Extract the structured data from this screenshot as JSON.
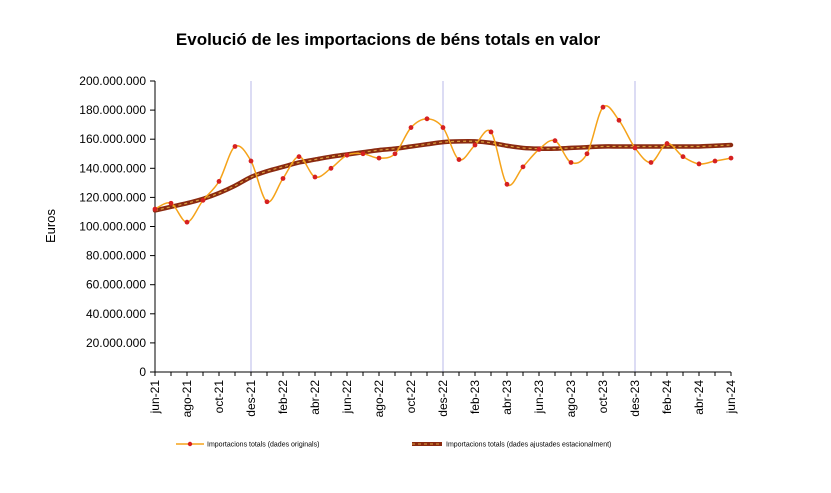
{
  "chart_data": {
    "type": "line",
    "title": "Evolució de les importacions de béns totals en valor",
    "ylabel": "Euros",
    "xlabel": "",
    "ylim": [
      0,
      200000000
    ],
    "y_ticks": [
      "0",
      "20.000.000",
      "40.000.000",
      "60.000.000",
      "80.000.000",
      "100.000.000",
      "120.000.000",
      "140.000.000",
      "160.000.000",
      "180.000.000",
      "200.000.000"
    ],
    "x_tick_labels": [
      "jun-21",
      "ago-21",
      "oct-21",
      "des-21",
      "feb-22",
      "abr-22",
      "jun-22",
      "ago-22",
      "oct-22",
      "des-22",
      "feb-23",
      "abr-23",
      "jun-23",
      "ago-23",
      "oct-23",
      "des-23",
      "feb-24",
      "abr-24",
      "jun-24"
    ],
    "months": [
      "jun-21",
      "jul-21",
      "ago-21",
      "set-21",
      "oct-21",
      "nov-21",
      "des-21",
      "gen-22",
      "feb-22",
      "mar-22",
      "abr-22",
      "mai-22",
      "jun-22",
      "jul-22",
      "ago-22",
      "set-22",
      "oct-22",
      "nov-22",
      "des-22",
      "gen-23",
      "feb-23",
      "mar-23",
      "abr-23",
      "mai-23",
      "jun-23",
      "jul-23",
      "ago-23",
      "set-23",
      "oct-23",
      "nov-23",
      "des-23",
      "gen-24",
      "feb-24",
      "mar-24",
      "abr-24",
      "mai-24",
      "jun-24"
    ],
    "year_separators": [
      "des-21",
      "des-22",
      "des-23"
    ],
    "grid": false,
    "legend_position": "bottom",
    "series": [
      {
        "name": "Importacions totals (dades originals)",
        "color": "#f5a31a",
        "marker_color": "#d62020",
        "values": [
          112000000,
          116000000,
          103000000,
          118000000,
          131000000,
          155000000,
          145000000,
          117000000,
          133000000,
          148000000,
          134000000,
          140000000,
          149000000,
          150000000,
          147000000,
          150000000,
          168000000,
          174000000,
          168000000,
          146000000,
          156000000,
          165000000,
          129000000,
          141000000,
          153000000,
          159000000,
          144000000,
          150000000,
          182000000,
          173000000,
          154000000,
          144000000,
          157000000,
          148000000,
          143000000,
          145000000,
          147000000
        ]
      },
      {
        "name": "Importacions totals (dades ajustades estacionalment)",
        "color": "#8b2a10",
        "dash_color": "#d9a040",
        "values": [
          111000000,
          113500000,
          116000000,
          119000000,
          123000000,
          128000000,
          134000000,
          138000000,
          141000000,
          144000000,
          146000000,
          148000000,
          149500000,
          151000000,
          152500000,
          153500000,
          155000000,
          156500000,
          158000000,
          158500000,
          158500000,
          157500000,
          155500000,
          154000000,
          153500000,
          153500000,
          154000000,
          154500000,
          155000000,
          155000000,
          155000000,
          155000000,
          155000000,
          155000000,
          155000000,
          155500000,
          156000000
        ]
      }
    ]
  }
}
